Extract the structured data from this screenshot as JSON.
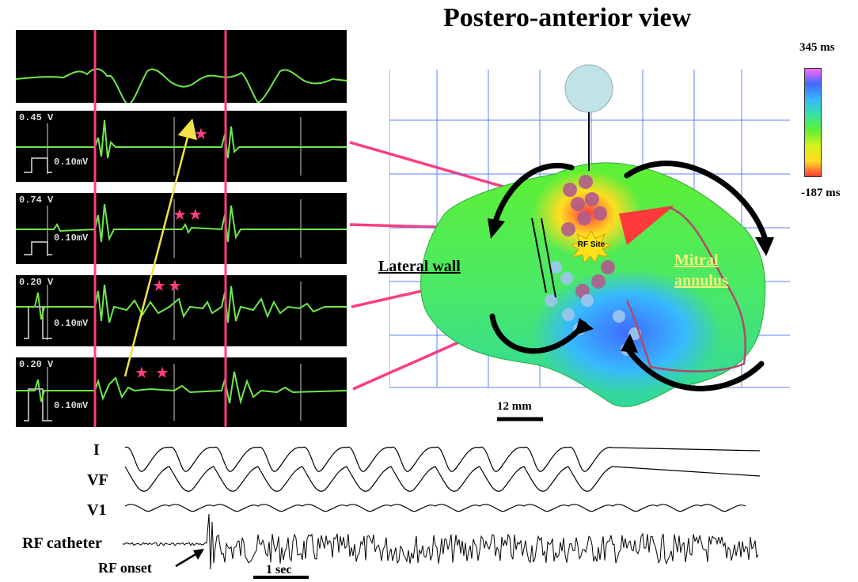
{
  "title": "Postero-anterior view",
  "color_scale": {
    "max_label": "345 ms",
    "min_label": "-187 ms",
    "colors": [
      "#ff66ff",
      "#3f6bff",
      "#38b8ff",
      "#37e3a0",
      "#5ef032",
      "#d7f01e",
      "#ffdd22",
      "#ff3a3a"
    ]
  },
  "electrograms": [
    {
      "voltage_label": "",
      "scale_label": ""
    },
    {
      "voltage_label": "0.45 V",
      "scale_label": "0.10mV"
    },
    {
      "voltage_label": "0.74 V",
      "scale_label": "0.10mV"
    },
    {
      "voltage_label": "0.20 V",
      "scale_label": "0.10mV"
    },
    {
      "voltage_label": "0.20 V",
      "scale_label": "0.10mV"
    }
  ],
  "map_labels": {
    "lateral_wall": "Lateral wall",
    "mitral_1": "Mitral",
    "mitral_2": "annulus",
    "rf_site": "RF Site",
    "scale_bar": "12 mm"
  },
  "ecg_labels": {
    "lead_i": "I",
    "lead_vf": "VF",
    "lead_v1": "V1",
    "rf_catheter": "RF catheter",
    "rf_onset": "RF onset",
    "time_scale": "1 sec"
  }
}
